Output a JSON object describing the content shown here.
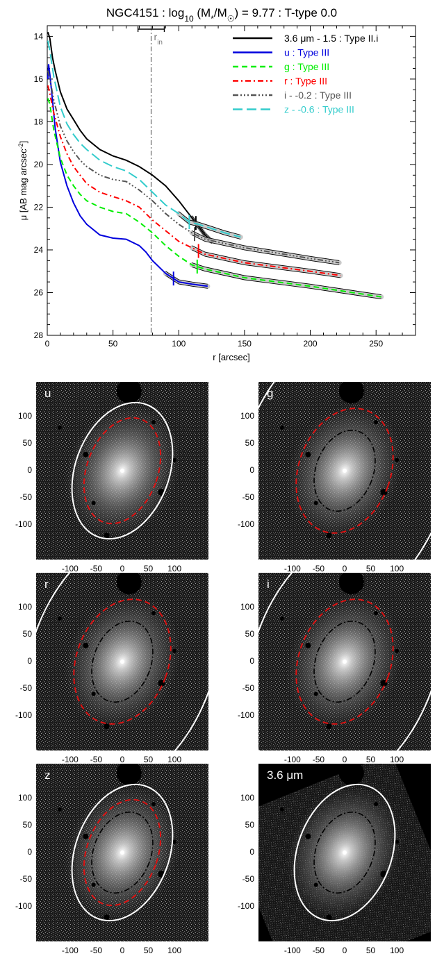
{
  "chart_data": [
    {
      "type": "line",
      "title": "NGC4151 : log10 (M*/M☉) = 9.77 : T-type 0.0",
      "title_parts": {
        "lead": "NGC4151 : log",
        "sub": "10",
        "mid": " (M",
        "sub2": "*",
        "slash": "/M",
        "sun": "☉",
        "tail": ") = 9.77 : T-type 0.0"
      },
      "xlabel": "r [arcsec]",
      "ylabel": "μ [AB mag arcsec",
      "ylabel_sup": "-2",
      "ylabel_end": "]",
      "xlim": [
        0,
        280
      ],
      "ylim": [
        28,
        13.5
      ],
      "xticks": [
        0,
        50,
        100,
        150,
        200,
        250
      ],
      "yticks": [
        14,
        16,
        18,
        20,
        22,
        24,
        26,
        28
      ],
      "legend_position": "top-right",
      "rin": {
        "label": "r",
        "sub": "in",
        "value": 79,
        "err": [
          69,
          89
        ]
      },
      "series": [
        {
          "name": "3.6 μm - 1.5 : Type II.i",
          "color": "#000000",
          "dash": "solid",
          "break": 113,
          "points": [
            [
              0.5,
              13.8
            ],
            [
              2,
              14.1
            ],
            [
              4,
              15.0
            ],
            [
              6,
              15.6
            ],
            [
              10,
              16.6
            ],
            [
              15,
              17.4
            ],
            [
              20,
              17.9
            ],
            [
              25,
              18.4
            ],
            [
              30,
              18.8
            ],
            [
              40,
              19.3
            ],
            [
              50,
              19.6
            ],
            [
              60,
              19.8
            ],
            [
              70,
              20.1
            ],
            [
              80,
              20.5
            ],
            [
              90,
              21.0
            ],
            [
              100,
              21.7
            ],
            [
              110,
              22.5
            ],
            [
              115,
              22.9
            ],
            [
              120,
              23.3
            ],
            [
              125,
              23.6
            ]
          ]
        },
        {
          "name": "u : Type III",
          "color": "#0000dd",
          "dash": "solid",
          "break": 96,
          "points": [
            [
              0.5,
              16.0
            ],
            [
              1,
              15.3
            ],
            [
              2,
              15.8
            ],
            [
              4,
              17.0
            ],
            [
              6,
              18.3
            ],
            [
              10,
              19.9
            ],
            [
              15,
              21.0
            ],
            [
              20,
              21.8
            ],
            [
              25,
              22.4
            ],
            [
              30,
              22.8
            ],
            [
              40,
              23.3
            ],
            [
              50,
              23.45
            ],
            [
              60,
              23.5
            ],
            [
              70,
              23.8
            ],
            [
              75,
              24.1
            ],
            [
              80,
              24.5
            ],
            [
              90,
              25.1
            ],
            [
              100,
              25.5
            ],
            [
              110,
              25.6
            ],
            [
              122,
              25.7
            ]
          ]
        },
        {
          "name": "g : Type III",
          "color": "#00ee00",
          "dash": "8,5",
          "break": 114,
          "points": [
            [
              0.5,
              16.9
            ],
            [
              2,
              17.2
            ],
            [
              5,
              18.4
            ],
            [
              10,
              19.7
            ],
            [
              15,
              20.5
            ],
            [
              20,
              21.0
            ],
            [
              25,
              21.4
            ],
            [
              30,
              21.7
            ],
            [
              40,
              22.0
            ],
            [
              50,
              22.2
            ],
            [
              60,
              22.3
            ],
            [
              70,
              22.7
            ],
            [
              80,
              23.2
            ],
            [
              90,
              23.8
            ],
            [
              100,
              24.3
            ],
            [
              110,
              24.7
            ],
            [
              120,
              24.9
            ],
            [
              150,
              25.3
            ],
            [
              200,
              25.7
            ],
            [
              254,
              26.2
            ]
          ]
        },
        {
          "name": "r : Type III",
          "color": "#ff0000",
          "dash": "8,4,2,4",
          "break": 115,
          "points": [
            [
              0.5,
              16.3
            ],
            [
              2,
              16.7
            ],
            [
              5,
              17.6
            ],
            [
              10,
              18.7
            ],
            [
              15,
              19.5
            ],
            [
              20,
              20.1
            ],
            [
              25,
              20.5
            ],
            [
              30,
              20.9
            ],
            [
              40,
              21.3
            ],
            [
              50,
              21.5
            ],
            [
              60,
              21.7
            ],
            [
              70,
              22.0
            ],
            [
              80,
              22.6
            ],
            [
              90,
              23.1
            ],
            [
              100,
              23.6
            ],
            [
              110,
              23.9
            ],
            [
              120,
              24.2
            ],
            [
              150,
              24.6
            ],
            [
              200,
              25.0
            ],
            [
              223,
              25.2
            ]
          ]
        },
        {
          "name": "i - -0.2 : Type III",
          "color": "#555555",
          "dash": "8,3,2,3,2,3,2,3",
          "break": 112,
          "points": [
            [
              0.5,
              15.6
            ],
            [
              2,
              16.0
            ],
            [
              5,
              17.0
            ],
            [
              10,
              18.2
            ],
            [
              15,
              18.9
            ],
            [
              20,
              19.4
            ],
            [
              25,
              19.8
            ],
            [
              30,
              20.1
            ],
            [
              40,
              20.5
            ],
            [
              50,
              20.7
            ],
            [
              60,
              20.8
            ],
            [
              70,
              21.2
            ],
            [
              80,
              21.7
            ],
            [
              90,
              22.3
            ],
            [
              100,
              22.8
            ],
            [
              110,
              23.2
            ],
            [
              120,
              23.5
            ],
            [
              150,
              23.9
            ],
            [
              200,
              24.4
            ],
            [
              222,
              24.6
            ]
          ]
        },
        {
          "name": "z - -0.6 : Type III",
          "color": "#33cccc",
          "dash": "14,6",
          "break": 108,
          "points": [
            [
              0.5,
              14.2
            ],
            [
              2,
              14.7
            ],
            [
              5,
              15.9
            ],
            [
              10,
              17.3
            ],
            [
              15,
              18.1
            ],
            [
              20,
              18.6
            ],
            [
              25,
              19.0
            ],
            [
              30,
              19.3
            ],
            [
              40,
              19.8
            ],
            [
              50,
              20.1
            ],
            [
              60,
              20.3
            ],
            [
              70,
              20.7
            ],
            [
              80,
              21.3
            ],
            [
              90,
              21.9
            ],
            [
              100,
              22.3
            ],
            [
              108,
              22.7
            ],
            [
              115,
              22.8
            ],
            [
              125,
              23.0
            ],
            [
              135,
              23.2
            ],
            [
              147,
              23.4
            ]
          ]
        }
      ]
    }
  ],
  "thumbnails": {
    "tick_labels_x": [
      "-100",
      "-50",
      "0",
      "50",
      "100"
    ],
    "tick_labels_y": [
      "100",
      "50",
      "0",
      "-50",
      "-100"
    ],
    "xlim": [
      -165,
      165
    ],
    "ylim": [
      -165,
      165
    ],
    "colors": {
      "inner": "#dd1111",
      "mid": "#000000",
      "outer": "#ffffff"
    },
    "panels": [
      {
        "label": "u",
        "outer": [
          90,
          135
        ],
        "red": [
          68,
          105
        ],
        "mid": null
      },
      {
        "label": "g",
        "outer": [
          200,
          300
        ],
        "red": [
          88,
          123
        ],
        "mid": [
          55,
          80
        ]
      },
      {
        "label": "r",
        "outer": [
          175,
          260
        ],
        "red": [
          88,
          123
        ],
        "mid": [
          55,
          80
        ]
      },
      {
        "label": "i",
        "outer": [
          175,
          260
        ],
        "red": [
          88,
          123
        ],
        "mid": [
          55,
          80
        ]
      },
      {
        "label": "z",
        "outer": [
          90,
          135
        ],
        "red": [
          68,
          105
        ],
        "mid": [
          55,
          80
        ]
      },
      {
        "label": "3.6 μm",
        "outer": [
          90,
          135
        ],
        "red": null,
        "mid": [
          55,
          80
        ]
      }
    ]
  }
}
